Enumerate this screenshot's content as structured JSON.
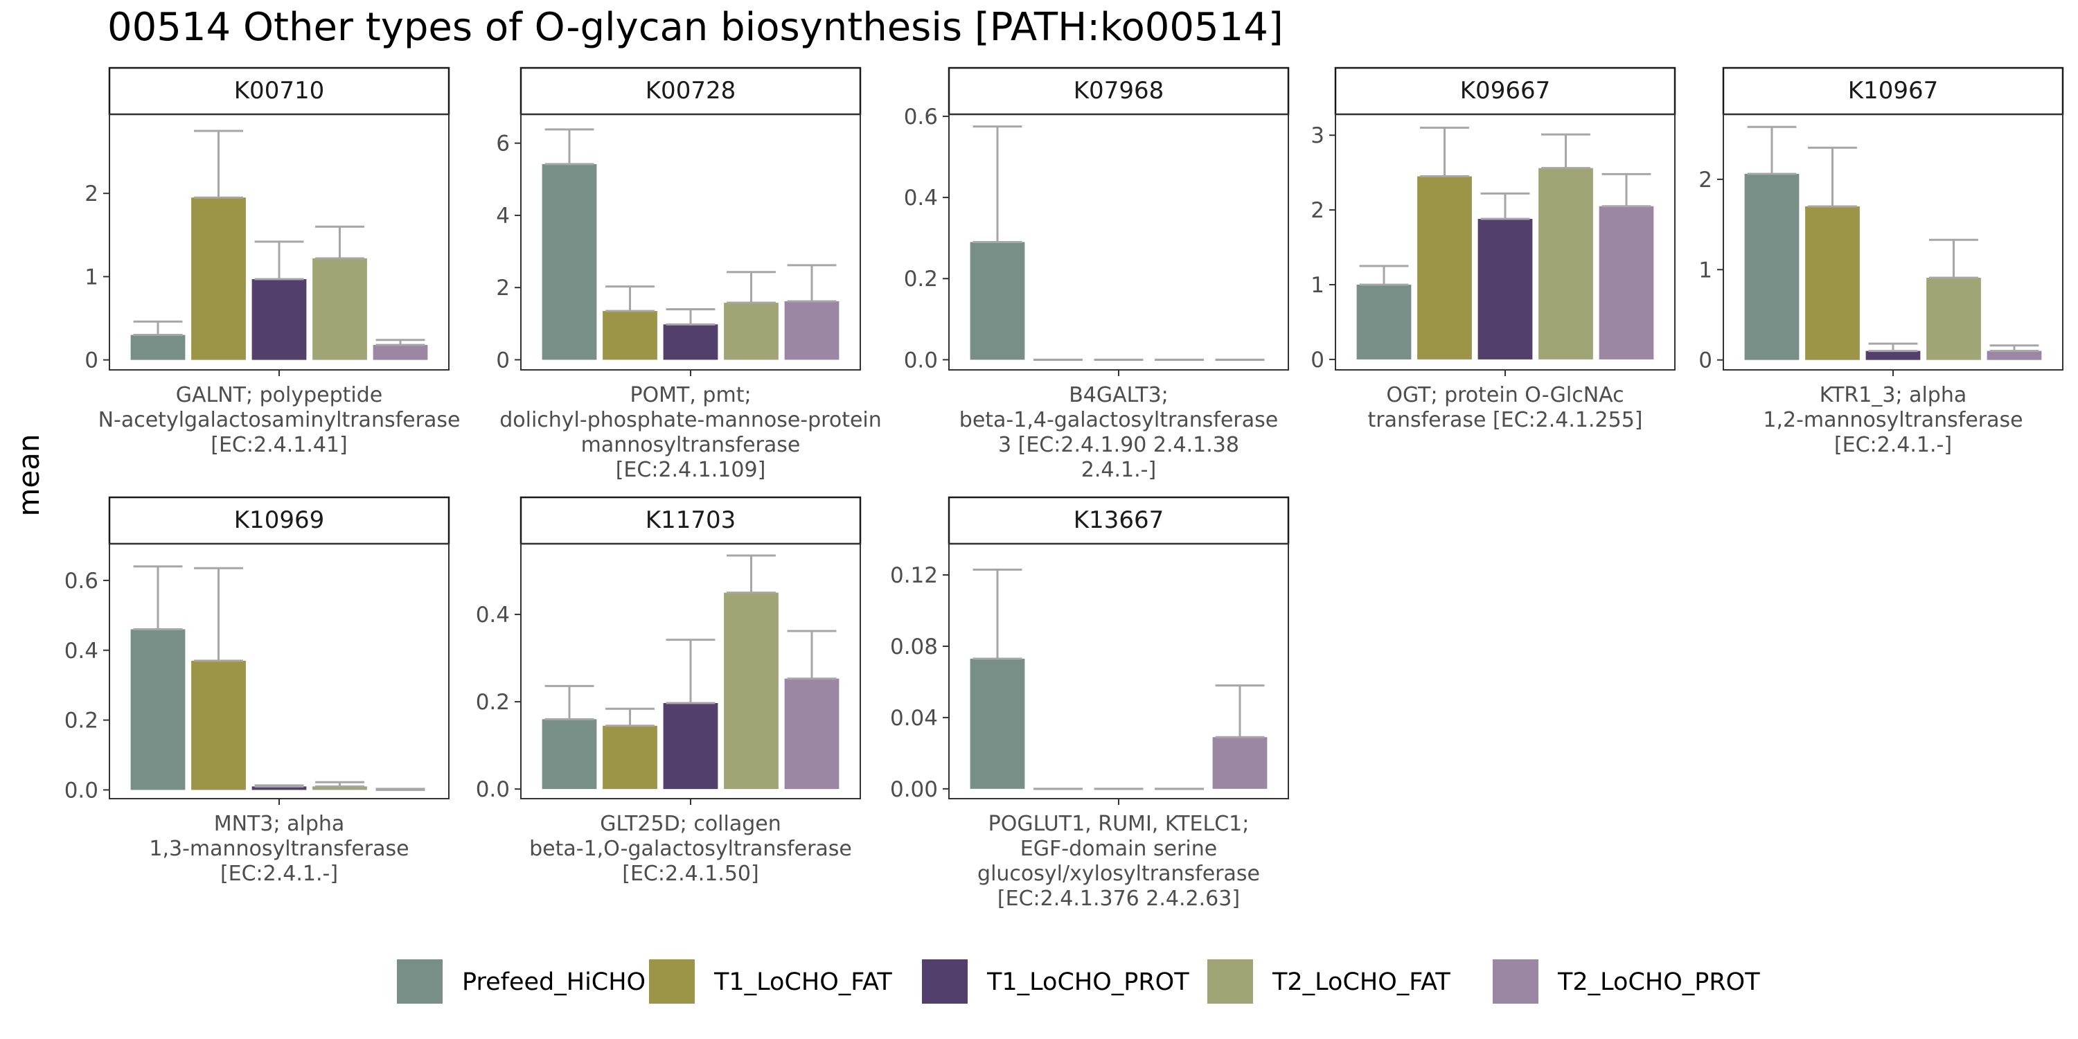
{
  "title": "00514 Other types of O-glycan biosynthesis [PATH:ko00514]",
  "ylabel": "mean",
  "groups": [
    {
      "name": "Prefeed_HiCHO",
      "color": "#778F87"
    },
    {
      "name": "T1_LoCHO_FAT",
      "color": "#9C9447"
    },
    {
      "name": "T1_LoCHO_PROT",
      "color": "#523F6B"
    },
    {
      "name": "T2_LoCHO_FAT",
      "color": "#A1A575"
    },
    {
      "name": "T2_LoCHO_PROT",
      "color": "#9B87A4"
    }
  ],
  "error_bar_color": "#a6a6a6",
  "chart_data": [
    {
      "type": "bar",
      "panel": "K00710",
      "xlabel_lines": [
        "GALNT; polypeptide",
        "N-acetylgalactosaminyltransferase",
        "[EC:2.4.1.41]"
      ],
      "ylim": [
        -0.12,
        2.95
      ],
      "yticks": [
        0,
        1,
        2
      ],
      "ytick_labels": [
        "0",
        "1",
        "2"
      ],
      "values": [
        0.3,
        1.95,
        0.97,
        1.22,
        0.18
      ],
      "errors": [
        0.46,
        2.75,
        1.42,
        1.6,
        0.24
      ]
    },
    {
      "type": "bar",
      "panel": "K00728",
      "xlabel_lines": [
        "POMT, pmt;",
        "dolichyl-phosphate-mannose-protein",
        "mannosyltransferase",
        "[EC:2.4.1.109]"
      ],
      "ylim": [
        -0.28,
        6.8
      ],
      "yticks": [
        0,
        2,
        4,
        6
      ],
      "ytick_labels": [
        "0",
        "2",
        "4",
        "6"
      ],
      "values": [
        5.42,
        1.35,
        0.98,
        1.58,
        1.62
      ],
      "errors": [
        6.38,
        2.03,
        1.4,
        2.43,
        2.62
      ]
    },
    {
      "type": "bar",
      "panel": "K07968",
      "xlabel_lines": [
        "B4GALT3;",
        "beta-1,4-galactosyltransferase",
        "3 [EC:2.4.1.90 2.4.1.38",
        "2.4.1.-]"
      ],
      "ylim": [
        -0.025,
        0.605
      ],
      "yticks": [
        0,
        0.2,
        0.4,
        0.6
      ],
      "ytick_labels": [
        "0.0",
        "0.2",
        "0.4",
        "0.6"
      ],
      "values": [
        0.29,
        0,
        0,
        0,
        0
      ],
      "errors": [
        0.575,
        0,
        0,
        0,
        0
      ]
    },
    {
      "type": "bar",
      "panel": "K09667",
      "xlabel_lines": [
        "OGT; protein O-GlcNAc",
        "transferase [EC:2.4.1.255]"
      ],
      "ylim": [
        -0.14,
        3.28
      ],
      "yticks": [
        0,
        1,
        2,
        3
      ],
      "ytick_labels": [
        "0",
        "1",
        "2",
        "3"
      ],
      "values": [
        1.0,
        2.45,
        1.88,
        2.56,
        2.05
      ],
      "errors": [
        1.25,
        3.1,
        2.22,
        3.01,
        2.48
      ]
    },
    {
      "type": "bar",
      "panel": "K10967",
      "xlabel_lines": [
        "KTR1_3; alpha",
        "1,2-mannosyltransferase",
        "[EC:2.4.1.-]"
      ],
      "ylim": [
        -0.11,
        2.72
      ],
      "yticks": [
        0,
        1,
        2
      ],
      "ytick_labels": [
        "0",
        "1",
        "2"
      ],
      "values": [
        2.06,
        1.7,
        0.1,
        0.91,
        0.1
      ],
      "errors": [
        2.58,
        2.35,
        0.18,
        1.33,
        0.16
      ]
    },
    {
      "type": "bar",
      "panel": "K10969",
      "xlabel_lines": [
        "MNT3; alpha",
        "1,3-mannosyltransferase",
        "[EC:2.4.1.-]"
      ],
      "ylim": [
        -0.025,
        0.705
      ],
      "yticks": [
        0,
        0.2,
        0.4,
        0.6
      ],
      "ytick_labels": [
        "0.0",
        "0.2",
        "0.4",
        "0.6"
      ],
      "values": [
        0.46,
        0.37,
        0.01,
        0.01,
        0.0
      ],
      "errors": [
        0.64,
        0.635,
        0.013,
        0.022,
        0.003
      ]
    },
    {
      "type": "bar",
      "panel": "K11703",
      "xlabel_lines": [
        "GLT25D; collagen",
        "beta-1,O-galactosyltransferase",
        "[EC:2.4.1.50]"
      ],
      "ylim": [
        -0.022,
        0.562
      ],
      "yticks": [
        0,
        0.2,
        0.4
      ],
      "ytick_labels": [
        "0.0",
        "0.2",
        "0.4"
      ],
      "values": [
        0.16,
        0.145,
        0.197,
        0.45,
        0.253
      ],
      "errors": [
        0.236,
        0.184,
        0.342,
        0.535,
        0.362
      ]
    },
    {
      "type": "bar",
      "panel": "K13667",
      "xlabel_lines": [
        "POGLUT1, RUMI, KTELC1;",
        "EGF-domain serine",
        "glucosyl/xylosyltransferase",
        "[EC:2.4.1.376 2.4.2.63]"
      ],
      "ylim": [
        -0.0055,
        0.1375
      ],
      "yticks": [
        0,
        0.04,
        0.08,
        0.12
      ],
      "ytick_labels": [
        "0.00",
        "0.04",
        "0.08",
        "0.12"
      ],
      "values": [
        0.073,
        0,
        0,
        0,
        0.029
      ],
      "errors": [
        0.123,
        0,
        0,
        0,
        0.058
      ]
    }
  ]
}
